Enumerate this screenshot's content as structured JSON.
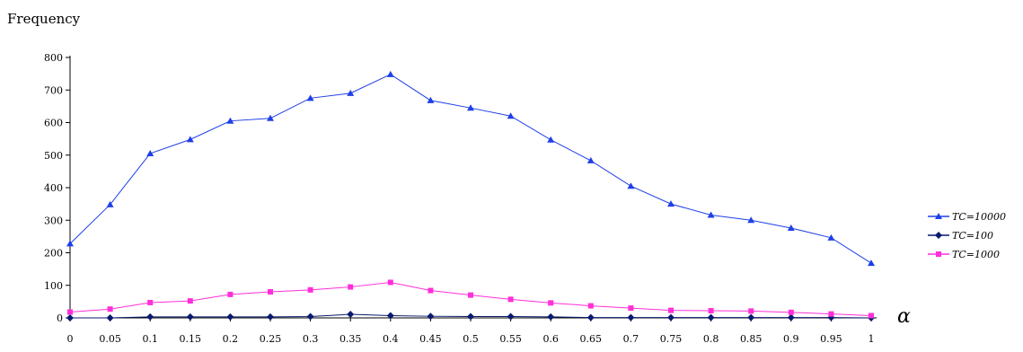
{
  "chart_data": {
    "type": "line",
    "title": "",
    "ylabel": "Frequency",
    "xlabel": "α",
    "ylim": [
      0,
      800
    ],
    "yticks": [
      0,
      100,
      200,
      300,
      400,
      500,
      600,
      700,
      800
    ],
    "x": [
      "0",
      "0.05",
      "0.1",
      "0.15",
      "0.2",
      "0.25",
      "0.3",
      "0.35",
      "0.4",
      "0.45",
      "0.5",
      "0.55",
      "0.6",
      "0.65",
      "0.7",
      "0.75",
      "0.8",
      "0.85",
      "0.9",
      "0.95",
      "1"
    ],
    "grid": false,
    "legend_position": "right",
    "series": [
      {
        "name": "TC=10000",
        "color": "#1f3fe8",
        "marker": "triangle",
        "values": [
          228,
          348,
          505,
          548,
          605,
          613,
          675,
          690,
          748,
          668,
          645,
          620,
          547,
          483,
          405,
          350,
          316,
          300,
          276,
          246,
          168
        ]
      },
      {
        "name": "TC=100",
        "color": "#0a1a6e",
        "marker": "diamond",
        "values": [
          0,
          0,
          3,
          3,
          3,
          3,
          4,
          11,
          7,
          5,
          4,
          4,
          3,
          1,
          1,
          1,
          1,
          1,
          1,
          1,
          0
        ]
      },
      {
        "name": "TC=1000",
        "color": "#ff2fd8",
        "marker": "square",
        "values": [
          18,
          27,
          47,
          52,
          72,
          80,
          86,
          95,
          109,
          84,
          70,
          57,
          46,
          37,
          30,
          23,
          22,
          21,
          17,
          12,
          7
        ]
      }
    ]
  }
}
